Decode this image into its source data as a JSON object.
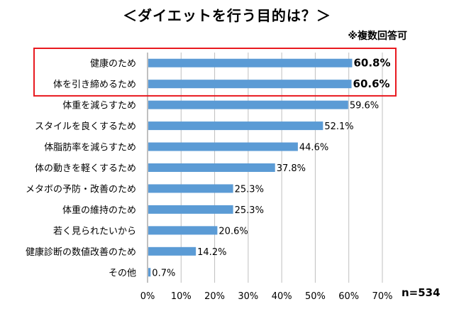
{
  "chart_data": {
    "type": "bar",
    "orientation": "horizontal",
    "title": "＜ダイエットを行う目的は？＞",
    "note": "※複数回答可",
    "n_label": "n=534",
    "categories": [
      "健康のため",
      "体を引き締めるため",
      "体重を減らすため",
      "スタイルを良くするため",
      "体脂肪率を減らすため",
      "体の動きを軽くするため",
      "メタボの予防・改善のため",
      "体重の維持のため",
      "若く見られたいから",
      "健康診断の数値改善のため",
      "その他"
    ],
    "values": [
      60.8,
      60.6,
      59.6,
      52.1,
      44.6,
      37.8,
      25.3,
      25.3,
      20.6,
      14.2,
      0.7
    ],
    "value_labels": [
      "60.8%",
      "60.6%",
      "59.6%",
      "52.1%",
      "44.6%",
      "37.8%",
      "25.3%",
      "25.3%",
      "20.6%",
      "14.2%",
      "0.7%"
    ],
    "highlighted": [
      0,
      1
    ],
    "xlim": [
      0,
      70
    ],
    "xticks": [
      0,
      10,
      20,
      30,
      40,
      50,
      60,
      70
    ],
    "xtick_labels": [
      "0%",
      "10%",
      "20%",
      "30%",
      "40%",
      "50%",
      "60%",
      "70%"
    ],
    "grid": true,
    "colors": {
      "bar": "#5b9bd5",
      "highlight_box": "#e8191f",
      "grid": "#bfbfbf"
    }
  }
}
